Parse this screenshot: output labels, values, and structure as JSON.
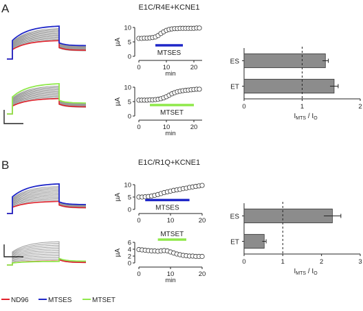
{
  "colors": {
    "nd96": "#e0202a",
    "mtses": "#1e26c8",
    "mtset": "#8fe84a",
    "grey": "#9a9a9a",
    "bar": "#8c8c8c",
    "axis": "#222222"
  },
  "panels": [
    {
      "letter": "A",
      "title": "E1C/R4E+KCNE1",
      "rows": [
        {
          "reagent": "MTSES",
          "color_key": "mtses",
          "timecourse": {
            "x": [
              0,
              1,
              2,
              3,
              4,
              5,
              6,
              7,
              8,
              9,
              10,
              11,
              12,
              13,
              14,
              15,
              16,
              17,
              18,
              19,
              20,
              21,
              22
            ],
            "y": [
              6.2,
              6.2,
              6.3,
              6.3,
              6.4,
              6.5,
              6.7,
              7.2,
              7.9,
              8.5,
              9.0,
              9.3,
              9.5,
              9.6,
              9.6,
              9.7,
              9.7,
              9.7,
              9.7,
              9.7,
              9.7,
              9.8,
              9.8
            ],
            "xlim": [
              0,
              23
            ],
            "ylim": [
              0,
              10
            ],
            "xticks": [
              "0",
              "10",
              "20"
            ],
            "yticks": [
              "0",
              "5",
              "10"
            ],
            "ylabel": "µA",
            "xlabel": "min",
            "bar_range": [
              6,
              16
            ],
            "bar_label": "MTSES"
          }
        },
        {
          "reagent": "MTSET",
          "color_key": "mtset",
          "timecourse": {
            "x": [
              0,
              1,
              2,
              3,
              4,
              5,
              6,
              7,
              8,
              9,
              10,
              11,
              12,
              13,
              14,
              15,
              16,
              17,
              18,
              19,
              20,
              21,
              22
            ],
            "y": [
              5.5,
              5.5,
              5.5,
              5.5,
              5.6,
              5.6,
              5.7,
              5.8,
              6.0,
              6.3,
              6.7,
              7.2,
              7.7,
              8.1,
              8.4,
              8.6,
              8.8,
              8.9,
              9.0,
              9.1,
              9.2,
              9.3,
              9.3
            ],
            "xlim": [
              0,
              23
            ],
            "ylim": [
              0,
              10
            ],
            "xticks": [
              "0",
              "10",
              "20"
            ],
            "yticks": [
              "0",
              "5",
              "10"
            ],
            "ylabel": "µA",
            "xlabel": "min",
            "bar_range": [
              4,
              20
            ],
            "bar_label": "MTSET"
          }
        }
      ],
      "bars": {
        "categories": [
          "ES",
          "ET"
        ],
        "values": [
          1.4,
          1.55
        ],
        "errors": [
          0.05,
          0.07
        ],
        "xlim": [
          0,
          2
        ],
        "xticks": [
          "0",
          "1",
          "2"
        ],
        "ref_line": 1,
        "xlabel": "I",
        "xlabel_sub": "MTS",
        "xlabel_mid": " / I",
        "xlabel_sub2": "O"
      }
    },
    {
      "letter": "B",
      "title": "E1C/R1Q+KCNE1",
      "rows": [
        {
          "reagent": "MTSES",
          "color_key": "mtses",
          "timecourse": {
            "x": [
              0,
              1,
              2,
              3,
              4,
              5,
              6,
              7,
              8,
              9,
              10,
              11,
              12,
              13,
              14,
              15,
              16,
              17,
              18,
              19,
              20
            ],
            "y": [
              5.0,
              5.0,
              5.1,
              5.2,
              5.4,
              5.7,
              6.0,
              6.4,
              6.8,
              7.1,
              7.4,
              7.7,
              7.9,
              8.1,
              8.4,
              8.6,
              8.9,
              9.1,
              9.3,
              9.5,
              9.7
            ],
            "xlim": [
              0,
              20
            ],
            "ylim": [
              0,
              10
            ],
            "xticks": [
              "0",
              "10",
              "20"
            ],
            "yticks": [
              "0",
              "5",
              "10"
            ],
            "ylabel": "µA",
            "xlabel": "",
            "bar_range": [
              2,
              16
            ],
            "bar_label": "MTSES"
          }
        },
        {
          "reagent": "MTSET",
          "color_key": "mtset",
          "timecourse": {
            "x": [
              0,
              1,
              2,
              3,
              4,
              5,
              6,
              7,
              8,
              9,
              10,
              11,
              12,
              13,
              14,
              15,
              16,
              17,
              18,
              19,
              20
            ],
            "y": [
              3.9,
              3.8,
              3.7,
              3.6,
              3.5,
              3.5,
              3.4,
              3.5,
              3.6,
              3.5,
              3.2,
              2.9,
              2.6,
              2.4,
              2.2,
              2.1,
              2.0,
              2.0,
              1.9,
              1.9,
              1.9
            ],
            "xlim": [
              0,
              20
            ],
            "ylim": [
              0,
              6
            ],
            "xticks": [
              "0",
              "10",
              "20"
            ],
            "yticks": [
              "0",
              "2",
              "4",
              "6"
            ],
            "ylabel": "µA",
            "xlabel": "min",
            "bar_range": [
              6,
              15
            ],
            "bar_label": "MTSET"
          }
        }
      ],
      "bars": {
        "categories": [
          "ES",
          "ET"
        ],
        "values": [
          2.28,
          0.52
        ],
        "errors": [
          0.22,
          0.05
        ],
        "xlim": [
          0,
          3
        ],
        "xticks": [
          "0",
          "1",
          "2",
          "3"
        ],
        "ref_line": 1,
        "xlabel": "I",
        "xlabel_sub": "MTS",
        "xlabel_mid": " / I",
        "xlabel_sub2": "O"
      }
    }
  ],
  "traces": [
    {
      "color_key": "mtses",
      "start": 0.55,
      "tail": 0.34
    },
    {
      "color_key": "mtset",
      "start": 0.5,
      "tail": 0.3
    },
    {
      "color_key": "mtses",
      "start": 0.4,
      "tail": 0.25
    },
    {
      "color_key": "mtset",
      "start": 0.15,
      "tail": 0.12
    }
  ],
  "legend": [
    {
      "label": "ND96",
      "color_key": "nd96"
    },
    {
      "label": "MTSES",
      "color_key": "mtses"
    },
    {
      "label": "MTSET",
      "color_key": "mtset"
    }
  ]
}
